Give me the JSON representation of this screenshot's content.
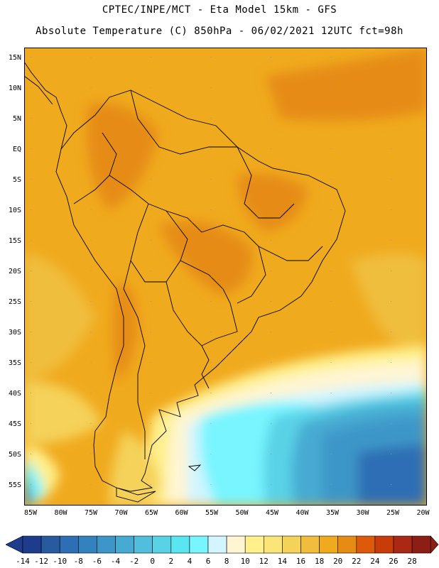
{
  "header": {
    "title_line1": "CPTEC/INPE/MCT -  Eta Model 15km - GFS",
    "title_line2": "Absolute Temperature (C) 850hPa - 06/02/2021 12UTC fct=98h"
  },
  "map": {
    "lat_labels": [
      "15N",
      "10N",
      "5N",
      "EQ",
      "5S",
      "10S",
      "15S",
      "20S",
      "25S",
      "30S",
      "35S",
      "40S",
      "45S",
      "50S",
      "55S"
    ],
    "lon_labels": [
      "85W",
      "80W",
      "75W",
      "70W",
      "65W",
      "60W",
      "55W",
      "50W",
      "45W",
      "40W",
      "35W",
      "30W",
      "25W",
      "20W"
    ]
  },
  "colorbar": {
    "labels": [
      "-14",
      "-12",
      "-10",
      "-8",
      "-6",
      "-4",
      "-2",
      "0",
      "2",
      "4",
      "6",
      "8",
      "10",
      "12",
      "14",
      "16",
      "18",
      "20",
      "22",
      "24",
      "26",
      "28"
    ],
    "colors": [
      "#1e3c8c",
      "#285aa0",
      "#2d6eb4",
      "#3282be",
      "#3c96c8",
      "#46aad2",
      "#50bedc",
      "#5ad2e6",
      "#5ae6f0",
      "#78f5ff",
      "#d2f5ff",
      "#fff5d2",
      "#fff08c",
      "#fae678",
      "#f5d25a",
      "#f0be3c",
      "#f0aa1e",
      "#e68c14",
      "#dc5a0a",
      "#c83c0a",
      "#aa2814",
      "#8c1e14"
    ],
    "low_color": "#1e3c8c",
    "high_color": "#8c1e14"
  }
}
